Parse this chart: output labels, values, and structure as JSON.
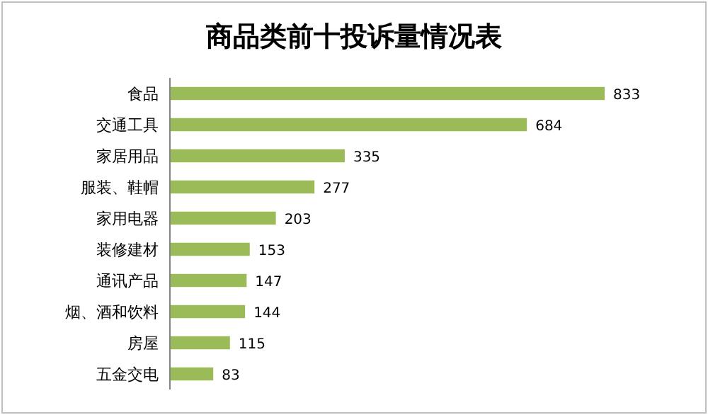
{
  "chart_data": {
    "type": "bar",
    "orientation": "horizontal",
    "title": "商品类前十投诉量情况表",
    "categories": [
      "食品",
      "交通工具",
      "家居用品",
      "服装、鞋帽",
      "家用电器",
      "装修建材",
      "通讯产品",
      "烟、酒和饮料",
      "房屋",
      "五金交电"
    ],
    "values": [
      833,
      684,
      335,
      277,
      203,
      153,
      147,
      144,
      115,
      83
    ],
    "color": "#9bbb59",
    "data_labels": true
  }
}
